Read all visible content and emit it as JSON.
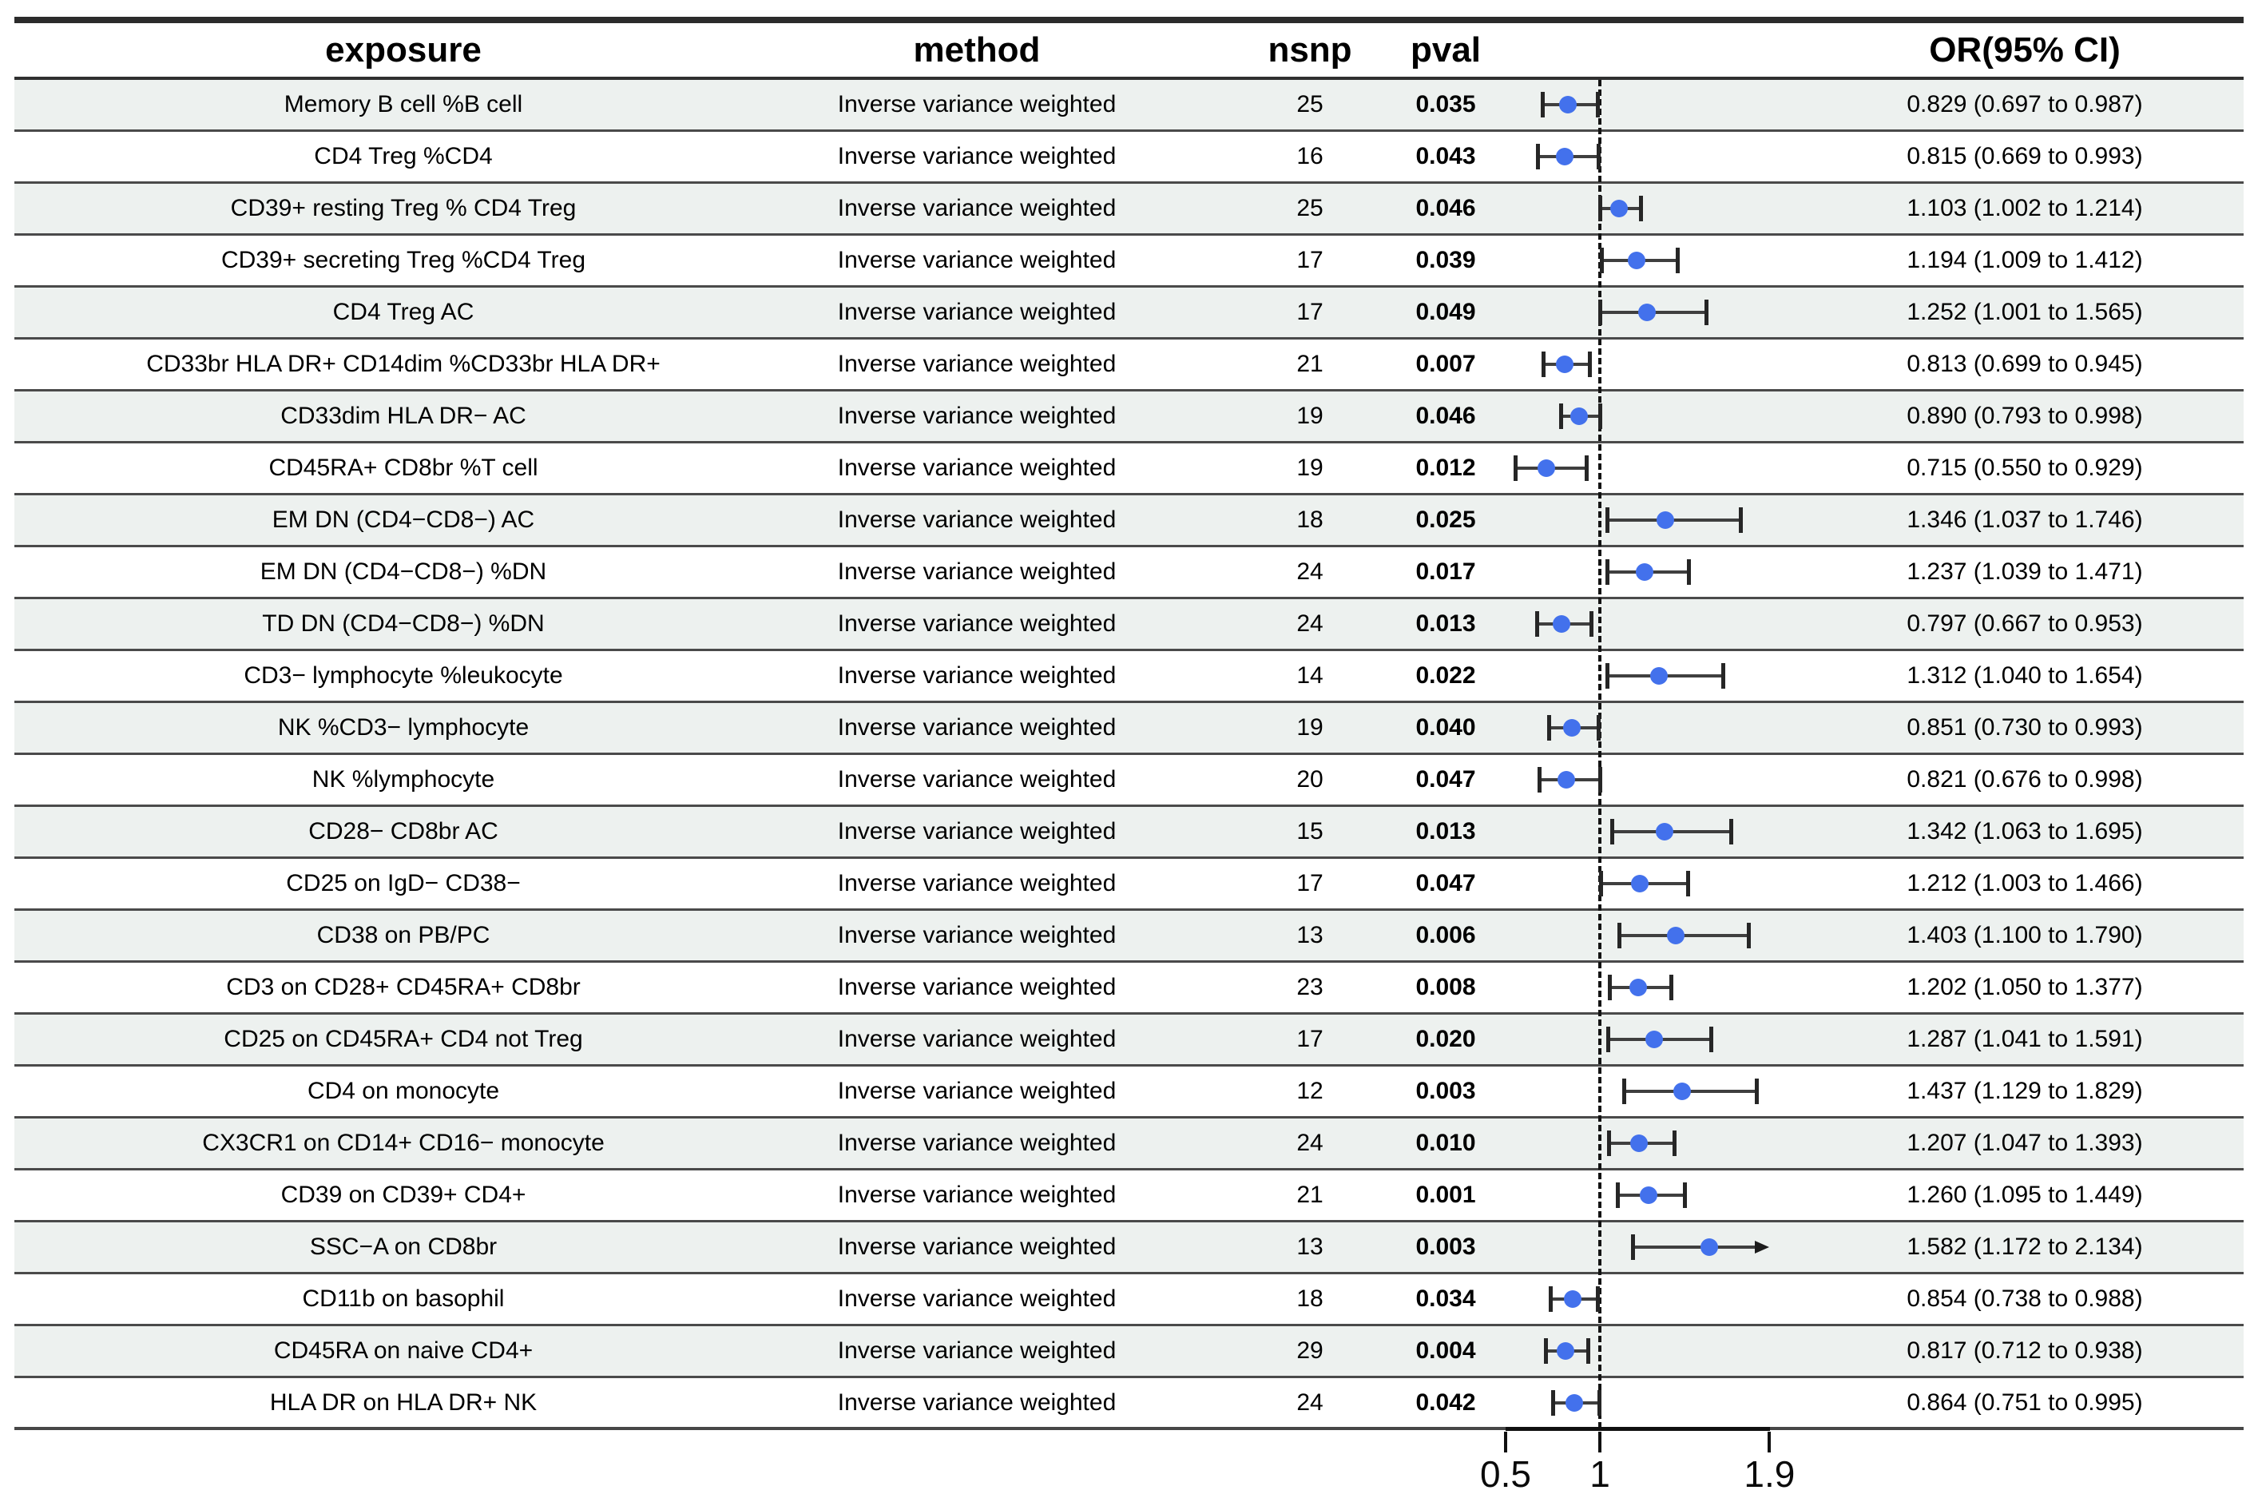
{
  "table": {
    "headers": {
      "exposure": "exposure",
      "method": "method",
      "nsnp": "nsnp",
      "pval": "pval",
      "or_ci": "OR(95% CI)"
    }
  },
  "colors": {
    "point": "#4371ec",
    "row_shade": "#edf1ef",
    "ci_bar": "#3f3f3f",
    "reference_line": "#141414"
  },
  "chart_data": {
    "type": "scatter",
    "subtype": "forest-plot-odds-ratio",
    "title": "",
    "xlabel": "",
    "ylabel": "",
    "x_tick_labels": [
      "0.5",
      "1",
      "1.9"
    ],
    "x_tick_values": [
      0.5,
      1,
      1.9
    ],
    "xlim": [
      0.5,
      1.9
    ],
    "reference_line": 1,
    "grid": false,
    "legend": false,
    "columns": [
      "exposure",
      "method",
      "nsnp",
      "pval",
      "OR(95% CI)"
    ],
    "rows": [
      {
        "exposure": "Memory B cell %B cell",
        "method": "Inverse variance weighted",
        "nsnp": "25",
        "pval": "0.035",
        "or": 0.829,
        "ci_low": 0.697,
        "ci_high": 0.987,
        "ci_high_clipped": false,
        "or_ci": "0.829 (0.697 to 0.987)"
      },
      {
        "exposure": "CD4 Treg %CD4",
        "method": "Inverse variance weighted",
        "nsnp": "16",
        "pval": "0.043",
        "or": 0.815,
        "ci_low": 0.669,
        "ci_high": 0.993,
        "ci_high_clipped": false,
        "or_ci": "0.815 (0.669 to 0.993)"
      },
      {
        "exposure": "CD39+ resting Treg % CD4 Treg",
        "method": "Inverse variance weighted",
        "nsnp": "25",
        "pval": "0.046",
        "or": 1.103,
        "ci_low": 1.002,
        "ci_high": 1.214,
        "ci_high_clipped": false,
        "or_ci": "1.103 (1.002 to 1.214)"
      },
      {
        "exposure": "CD39+ secreting Treg %CD4 Treg",
        "method": "Inverse variance weighted",
        "nsnp": "17",
        "pval": "0.039",
        "or": 1.194,
        "ci_low": 1.009,
        "ci_high": 1.412,
        "ci_high_clipped": false,
        "or_ci": "1.194 (1.009 to 1.412)"
      },
      {
        "exposure": "CD4 Treg AC",
        "method": "Inverse variance weighted",
        "nsnp": "17",
        "pval": "0.049",
        "or": 1.252,
        "ci_low": 1.001,
        "ci_high": 1.565,
        "ci_high_clipped": false,
        "or_ci": "1.252 (1.001 to 1.565)"
      },
      {
        "exposure": "CD33br HLA DR+ CD14dim %CD33br HLA DR+",
        "method": "Inverse variance weighted",
        "nsnp": "21",
        "pval": "0.007",
        "or": 0.813,
        "ci_low": 0.699,
        "ci_high": 0.945,
        "ci_high_clipped": false,
        "or_ci": "0.813 (0.699 to 0.945)"
      },
      {
        "exposure": "CD33dim HLA DR− AC",
        "method": "Inverse variance weighted",
        "nsnp": "19",
        "pval": "0.046",
        "or": 0.89,
        "ci_low": 0.793,
        "ci_high": 0.998,
        "ci_high_clipped": false,
        "or_ci": "0.890 (0.793 to 0.998)"
      },
      {
        "exposure": "CD45RA+ CD8br %T cell",
        "method": "Inverse variance weighted",
        "nsnp": "19",
        "pval": "0.012",
        "or": 0.715,
        "ci_low": 0.55,
        "ci_high": 0.929,
        "ci_high_clipped": false,
        "or_ci": "0.715 (0.550 to 0.929)"
      },
      {
        "exposure": "EM DN (CD4−CD8−) AC",
        "method": "Inverse variance weighted",
        "nsnp": "18",
        "pval": "0.025",
        "or": 1.346,
        "ci_low": 1.037,
        "ci_high": 1.746,
        "ci_high_clipped": false,
        "or_ci": "1.346 (1.037 to 1.746)"
      },
      {
        "exposure": "EM DN (CD4−CD8−) %DN",
        "method": "Inverse variance weighted",
        "nsnp": "24",
        "pval": "0.017",
        "or": 1.237,
        "ci_low": 1.039,
        "ci_high": 1.471,
        "ci_high_clipped": false,
        "or_ci": "1.237 (1.039 to 1.471)"
      },
      {
        "exposure": "TD DN (CD4−CD8−) %DN",
        "method": "Inverse variance weighted",
        "nsnp": "24",
        "pval": "0.013",
        "or": 0.797,
        "ci_low": 0.667,
        "ci_high": 0.953,
        "ci_high_clipped": false,
        "or_ci": "0.797 (0.667 to 0.953)"
      },
      {
        "exposure": "CD3− lymphocyte %leukocyte",
        "method": "Inverse variance weighted",
        "nsnp": "14",
        "pval": "0.022",
        "or": 1.312,
        "ci_low": 1.04,
        "ci_high": 1.654,
        "ci_high_clipped": false,
        "or_ci": "1.312 (1.040 to 1.654)"
      },
      {
        "exposure": "NK %CD3− lymphocyte",
        "method": "Inverse variance weighted",
        "nsnp": "19",
        "pval": "0.040",
        "or": 0.851,
        "ci_low": 0.73,
        "ci_high": 0.993,
        "ci_high_clipped": false,
        "or_ci": "0.851 (0.730 to 0.993)"
      },
      {
        "exposure": "NK %lymphocyte",
        "method": "Inverse variance weighted",
        "nsnp": "20",
        "pval": "0.047",
        "or": 0.821,
        "ci_low": 0.676,
        "ci_high": 0.998,
        "ci_high_clipped": false,
        "or_ci": "0.821 (0.676 to 0.998)"
      },
      {
        "exposure": "CD28− CD8br AC",
        "method": "Inverse variance weighted",
        "nsnp": "15",
        "pval": "0.013",
        "or": 1.342,
        "ci_low": 1.063,
        "ci_high": 1.695,
        "ci_high_clipped": false,
        "or_ci": "1.342 (1.063 to 1.695)"
      },
      {
        "exposure": "CD25 on IgD− CD38−",
        "method": "Inverse variance weighted",
        "nsnp": "17",
        "pval": "0.047",
        "or": 1.212,
        "ci_low": 1.003,
        "ci_high": 1.466,
        "ci_high_clipped": false,
        "or_ci": "1.212 (1.003 to 1.466)"
      },
      {
        "exposure": "CD38 on PB/PC",
        "method": "Inverse variance weighted",
        "nsnp": "13",
        "pval": "0.006",
        "or": 1.403,
        "ci_low": 1.1,
        "ci_high": 1.79,
        "ci_high_clipped": false,
        "or_ci": "1.403 (1.100 to 1.790)"
      },
      {
        "exposure": "CD3 on CD28+ CD45RA+ CD8br",
        "method": "Inverse variance weighted",
        "nsnp": "23",
        "pval": "0.008",
        "or": 1.202,
        "ci_low": 1.05,
        "ci_high": 1.377,
        "ci_high_clipped": false,
        "or_ci": "1.202 (1.050 to 1.377)"
      },
      {
        "exposure": "CD25 on CD45RA+ CD4 not Treg",
        "method": "Inverse variance weighted",
        "nsnp": "17",
        "pval": "0.020",
        "or": 1.287,
        "ci_low": 1.041,
        "ci_high": 1.591,
        "ci_high_clipped": false,
        "or_ci": "1.287 (1.041 to 1.591)"
      },
      {
        "exposure": "CD4 on monocyte",
        "method": "Inverse variance weighted",
        "nsnp": "12",
        "pval": "0.003",
        "or": 1.437,
        "ci_low": 1.129,
        "ci_high": 1.829,
        "ci_high_clipped": false,
        "or_ci": "1.437 (1.129 to 1.829)"
      },
      {
        "exposure": "CX3CR1 on CD14+ CD16− monocyte",
        "method": "Inverse variance weighted",
        "nsnp": "24",
        "pval": "0.010",
        "or": 1.207,
        "ci_low": 1.047,
        "ci_high": 1.393,
        "ci_high_clipped": false,
        "or_ci": "1.207 (1.047 to 1.393)"
      },
      {
        "exposure": "CD39 on CD39+ CD4+",
        "method": "Inverse variance weighted",
        "nsnp": "21",
        "pval": "0.001",
        "or": 1.26,
        "ci_low": 1.095,
        "ci_high": 1.449,
        "ci_high_clipped": false,
        "or_ci": "1.260 (1.095 to 1.449)"
      },
      {
        "exposure": "SSC−A on CD8br",
        "method": "Inverse variance weighted",
        "nsnp": "13",
        "pval": "0.003",
        "or": 1.582,
        "ci_low": 1.172,
        "ci_high": 2.134,
        "ci_high_clipped": true,
        "or_ci": "1.582 (1.172 to 2.134)"
      },
      {
        "exposure": "CD11b on basophil",
        "method": "Inverse variance weighted",
        "nsnp": "18",
        "pval": "0.034",
        "or": 0.854,
        "ci_low": 0.738,
        "ci_high": 0.988,
        "ci_high_clipped": false,
        "or_ci": "0.854 (0.738 to 0.988)"
      },
      {
        "exposure": "CD45RA on naive CD4+",
        "method": "Inverse variance weighted",
        "nsnp": "29",
        "pval": "0.004",
        "or": 0.817,
        "ci_low": 0.712,
        "ci_high": 0.938,
        "ci_high_clipped": false,
        "or_ci": "0.817 (0.712 to 0.938)"
      },
      {
        "exposure": "HLA DR on HLA DR+ NK",
        "method": "Inverse variance weighted",
        "nsnp": "24",
        "pval": "0.042",
        "or": 0.864,
        "ci_low": 0.751,
        "ci_high": 0.995,
        "ci_high_clipped": false,
        "or_ci": "0.864 (0.751 to 0.995)"
      }
    ]
  }
}
